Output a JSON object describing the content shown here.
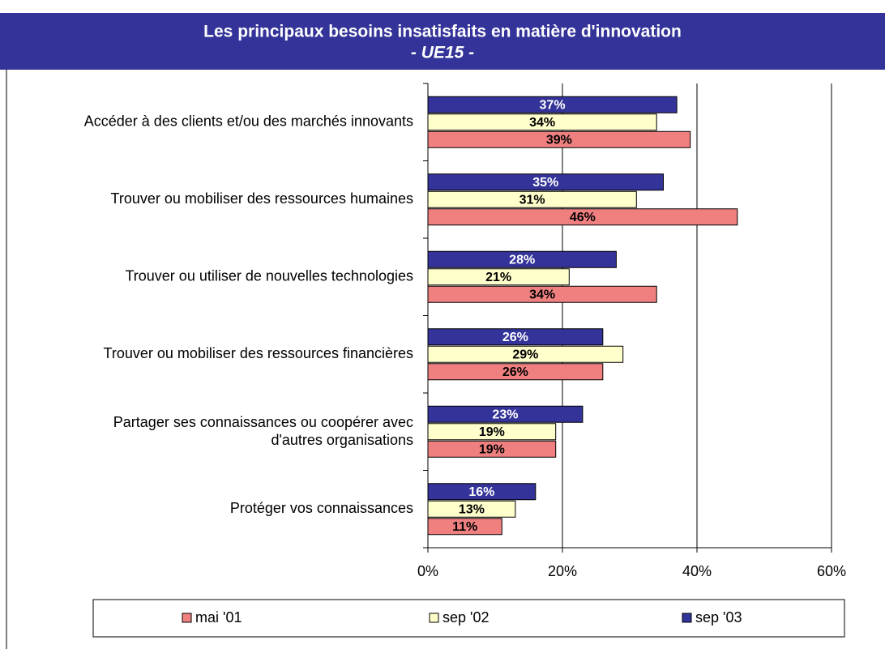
{
  "chart_data": {
    "type": "bar",
    "orientation": "horizontal",
    "title": "Les principaux besoins insatisfaits en matière d'innovation",
    "subtitle": "- UE15 -",
    "categories": [
      "Accéder à des clients et/ou des marchés innovants",
      "Trouver ou mobiliser des ressources humaines",
      "Trouver ou utiliser de nouvelles technologies",
      "Trouver ou mobiliser des ressources financières",
      "Partager ses connaissances ou coopérer avec\nd'autres  organisations",
      "Protéger vos connaissances"
    ],
    "series": [
      {
        "name": "mai '01",
        "color": "#f08080",
        "values": [
          39,
          46,
          34,
          26,
          19,
          11
        ],
        "value_labels": [
          "39%",
          "46%",
          "34%",
          "26%",
          "19%",
          "11%"
        ]
      },
      {
        "name": "sep '02",
        "color": "#ffffcc",
        "values": [
          34,
          31,
          21,
          29,
          19,
          13
        ],
        "value_labels": [
          "34%",
          "31%",
          "21%",
          "29%",
          "19%",
          "13%"
        ]
      },
      {
        "name": "sep '03",
        "color": "#333399",
        "values": [
          37,
          35,
          28,
          26,
          23,
          16
        ],
        "value_labels": [
          "37%",
          "35%",
          "28%",
          "26%",
          "23%",
          "16%"
        ]
      }
    ],
    "xlim": [
      0,
      60
    ],
    "xticks": [
      {
        "value": 0,
        "label": "0%"
      },
      {
        "value": 20,
        "label": "20%"
      },
      {
        "value": 40,
        "label": "40%"
      },
      {
        "value": 60,
        "label": "60%"
      }
    ],
    "grid": true,
    "legend": "bottom"
  }
}
